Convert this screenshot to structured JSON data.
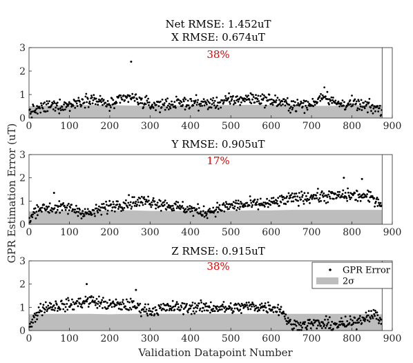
{
  "figure": {
    "ylabel": "GPR Estimation Error (uT)",
    "xlabel": "Validation Datapoint Number",
    "suptitle": "Net RMSE: 1.452uT"
  },
  "legend": {
    "entries": [
      {
        "label": "GPR Error",
        "marker": "dot",
        "color": "#000000"
      },
      {
        "label": "2σ",
        "marker": "patch",
        "color": "#bdbdbd"
      }
    ],
    "location": "top-right of bottom panel"
  },
  "colors": {
    "points": "#000000",
    "band": "#bdbdbd",
    "percent": "#e60000",
    "vline": "#555555"
  },
  "chart_data": [
    {
      "type": "scatter",
      "title": "X RMSE: 0.674uT",
      "annotation": "38%",
      "xlim": [
        0,
        900
      ],
      "ylim": [
        0,
        3
      ],
      "xticks": [
        "0",
        "100",
        "200",
        "300",
        "400",
        "500",
        "600",
        "700",
        "800",
        "900"
      ],
      "yticks": [
        "0",
        "1",
        "2",
        "3"
      ],
      "vline_x": 875,
      "band_2sigma_x": [
        0,
        50,
        100,
        150,
        200,
        250,
        300,
        350,
        400,
        450,
        500,
        550,
        600,
        650,
        700,
        750,
        800,
        850,
        875
      ],
      "band_2sigma_y": [
        0.5,
        0.53,
        0.55,
        0.55,
        0.55,
        0.53,
        0.52,
        0.53,
        0.53,
        0.55,
        0.55,
        0.56,
        0.55,
        0.55,
        0.52,
        0.52,
        0.55,
        0.55,
        0.55
      ],
      "series_y_approx_x": [
        0,
        50,
        100,
        150,
        200,
        250,
        300,
        350,
        400,
        450,
        500,
        550,
        600,
        650,
        700,
        730,
        760,
        800,
        850,
        875
      ],
      "series_y_approx": [
        0.25,
        0.5,
        0.55,
        0.85,
        0.55,
        0.9,
        0.55,
        0.6,
        0.65,
        0.6,
        0.75,
        0.85,
        0.75,
        0.55,
        0.55,
        1.05,
        0.6,
        0.6,
        0.45,
        0.35
      ],
      "outliers": [
        {
          "x": 253,
          "y": 2.4
        }
      ]
    },
    {
      "type": "scatter",
      "title": "Y RMSE: 0.905uT",
      "annotation": "17%",
      "xlim": [
        0,
        900
      ],
      "ylim": [
        0,
        3
      ],
      "xticks": [
        "0",
        "100",
        "200",
        "300",
        "400",
        "500",
        "600",
        "700",
        "800",
        "900"
      ],
      "yticks": [
        "0",
        "1",
        "2",
        "3"
      ],
      "vline_x": 875,
      "band_2sigma_x": [
        0,
        50,
        100,
        150,
        200,
        250,
        300,
        350,
        400,
        450,
        500,
        550,
        600,
        650,
        700,
        750,
        800,
        850,
        875
      ],
      "band_2sigma_y": [
        0.55,
        0.58,
        0.58,
        0.58,
        0.6,
        0.6,
        0.58,
        0.58,
        0.58,
        0.58,
        0.58,
        0.6,
        0.6,
        0.62,
        0.62,
        0.62,
        0.62,
        0.62,
        0.62
      ],
      "series_y_approx_x": [
        0,
        20,
        50,
        100,
        150,
        200,
        250,
        300,
        350,
        400,
        430,
        500,
        550,
        600,
        650,
        700,
        750,
        800,
        850,
        875
      ],
      "series_y_approx": [
        0.15,
        0.7,
        0.7,
        0.7,
        0.45,
        0.8,
        0.95,
        1.0,
        0.8,
        0.65,
        0.5,
        0.8,
        0.85,
        0.9,
        1.1,
        1.2,
        1.2,
        1.25,
        1.15,
        0.9
      ],
      "outliers": [
        {
          "x": 62,
          "y": 1.35
        },
        {
          "x": 780,
          "y": 2.0
        },
        {
          "x": 825,
          "y": 1.95
        }
      ]
    },
    {
      "type": "scatter",
      "title": "Z RMSE: 0.915uT",
      "annotation": "38%",
      "xlim": [
        0,
        900
      ],
      "ylim": [
        0,
        3
      ],
      "xticks": [
        "0",
        "100",
        "200",
        "300",
        "400",
        "500",
        "600",
        "700",
        "800",
        "900"
      ],
      "yticks": [
        "0",
        "1",
        "2",
        "3"
      ],
      "vline_x": 875,
      "band_2sigma_x": [
        0,
        50,
        100,
        150,
        200,
        250,
        300,
        350,
        400,
        450,
        500,
        550,
        600,
        650,
        700,
        750,
        800,
        850,
        875
      ],
      "band_2sigma_y": [
        0.7,
        0.72,
        0.72,
        0.72,
        0.7,
        0.72,
        0.72,
        0.72,
        0.72,
        0.72,
        0.72,
        0.72,
        0.72,
        0.72,
        0.72,
        0.72,
        0.72,
        0.72,
        0.7
      ],
      "series_y_approx_x": [
        0,
        25,
        50,
        100,
        150,
        200,
        250,
        300,
        350,
        400,
        450,
        500,
        550,
        600,
        625,
        650,
        700,
        750,
        800,
        850,
        875
      ],
      "series_y_approx": [
        0.1,
        0.9,
        1.05,
        1.1,
        1.3,
        1.1,
        1.1,
        0.85,
        1.0,
        1.0,
        1.0,
        0.95,
        1.05,
        1.0,
        0.9,
        0.2,
        0.3,
        0.25,
        0.3,
        0.75,
        0.4
      ],
      "outliers": [
        {
          "x": 143,
          "y": 2.0
        },
        {
          "x": 265,
          "y": 1.75
        }
      ]
    }
  ]
}
